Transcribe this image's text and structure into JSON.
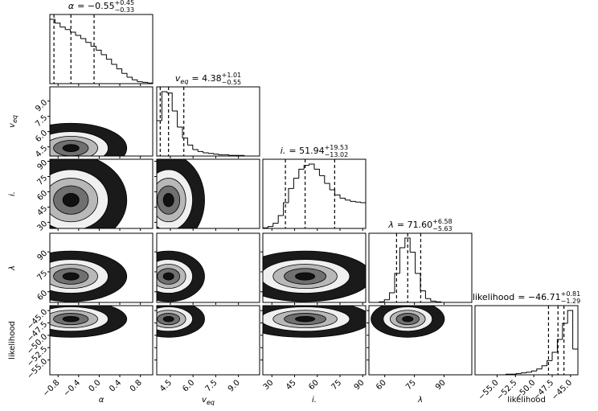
{
  "chart_data": {
    "type": "corner",
    "parameters": [
      {
        "symbol": "α",
        "title_value": "= −0.55",
        "err_plus": "+0.45",
        "err_minus": "−0.33",
        "lim": [
          -0.96,
          1.04
        ],
        "ticks": [
          {
            "value": -0.8,
            "label": "−0.8"
          },
          {
            "value": -0.4,
            "label": "−0.4"
          },
          {
            "value": 0,
            "label": "0.0"
          },
          {
            "value": 0.4,
            "label": "0.4"
          },
          {
            "value": 0.8,
            "label": "0.8"
          }
        ],
        "quantiles": [
          -0.88,
          -0.55,
          -0.1
        ],
        "bins": [
          -0.96,
          -0.86,
          -0.76,
          -0.66,
          -0.56,
          -0.46,
          -0.36,
          -0.26,
          -0.16,
          -0.06,
          0.04,
          0.14,
          0.24,
          0.34,
          0.44,
          0.54,
          0.64,
          0.74,
          0.84,
          0.94,
          1.04
        ],
        "counts": [
          100,
          94,
          88,
          84,
          80,
          75,
          70,
          64,
          58,
          52,
          45,
          38,
          30,
          23,
          16,
          10,
          6,
          3,
          2,
          1
        ]
      },
      {
        "symbol": "v",
        "symbol_sub": "eq",
        "title_value": "= 4.38",
        "err_plus": "+1.01",
        "err_minus": "−0.55",
        "lim": [
          3.6,
          10.4
        ],
        "ticks": [
          4.5,
          {
            "value": 6,
            "label": "6.0"
          },
          7.5,
          {
            "value": 9,
            "label": "9.0"
          }
        ],
        "quantiles": [
          3.83,
          4.38,
          5.39
        ],
        "bins": [
          3.6,
          3.94,
          4.28,
          4.62,
          4.96,
          5.3,
          5.64,
          5.98,
          6.32,
          6.66,
          7.0,
          7.34,
          7.68,
          8.02,
          8.36,
          8.7,
          9.04,
          9.38,
          9.72,
          10.06,
          10.4
        ],
        "counts": [
          55,
          100,
          98,
          70,
          45,
          28,
          17,
          10,
          7,
          5,
          4,
          3,
          2,
          2,
          1,
          1,
          1,
          0,
          0,
          0
        ]
      },
      {
        "symbol": "i.",
        "title_value": "= 51.94",
        "err_plus": "+19.53",
        "err_minus": "−13.02",
        "lim": [
          24,
          92
        ],
        "ticks": [
          30,
          45,
          60,
          75,
          90
        ],
        "quantiles": [
          38.92,
          51.94,
          71.47
        ],
        "bins": [
          24,
          27.4,
          30.8,
          34.2,
          37.6,
          41,
          44.4,
          47.8,
          51.2,
          54.6,
          58,
          61.4,
          64.8,
          68.2,
          71.6,
          75,
          78.4,
          81.8,
          85.2,
          88.6,
          92
        ],
        "counts": [
          1,
          3,
          8,
          20,
          40,
          62,
          78,
          92,
          98,
          100,
          92,
          82,
          70,
          60,
          52,
          47,
          44,
          42,
          41,
          40
        ]
      },
      {
        "symbol": "λ",
        "title_value": "= 71.60",
        "err_plus": "+6.58",
        "err_minus": "−5.63",
        "lim": [
          52,
          104
        ],
        "ticks": [
          60,
          75,
          90
        ],
        "quantiles": [
          65.97,
          71.6,
          78.18
        ],
        "bins": [
          52,
          54.6,
          57.2,
          59.8,
          62.4,
          65,
          67.6,
          70.2,
          72.8,
          75.4,
          78,
          80.6,
          83.2,
          85.8,
          88.4,
          91,
          93.6,
          96.2,
          98.8,
          101.4,
          104
        ],
        "counts": [
          0,
          0,
          1,
          4,
          15,
          45,
          85,
          100,
          78,
          45,
          18,
          6,
          2,
          1,
          0,
          0,
          0,
          0,
          0,
          0
        ]
      },
      {
        "symbol": "likelihood",
        "title_value": "= −46.71",
        "err_plus": "+0.81",
        "err_minus": "−1.29",
        "lim": [
          -58,
          -44
        ],
        "ticks": [
          {
            "value": -55,
            "label": "−55.0"
          },
          {
            "value": -52.5,
            "label": "−52.5"
          },
          {
            "value": -50,
            "label": "−50.0"
          },
          {
            "value": -47.5,
            "label": "−47.5"
          },
          {
            "value": -45,
            "label": "−45.0"
          }
        ],
        "quantiles": [
          -48.0,
          -46.71,
          -45.9
        ],
        "bins": [
          -58,
          -57.3,
          -56.6,
          -55.9,
          -55.2,
          -54.5,
          -53.8,
          -53.1,
          -52.4,
          -51.7,
          -51,
          -50.3,
          -49.6,
          -48.9,
          -48.2,
          -47.5,
          -46.8,
          -46.1,
          -45.4,
          -44.7,
          -44
        ],
        "counts": [
          0,
          0,
          0,
          0,
          0,
          0,
          1,
          1,
          2,
          3,
          4,
          6,
          9,
          14,
          22,
          35,
          55,
          80,
          100,
          40
        ]
      }
    ]
  }
}
